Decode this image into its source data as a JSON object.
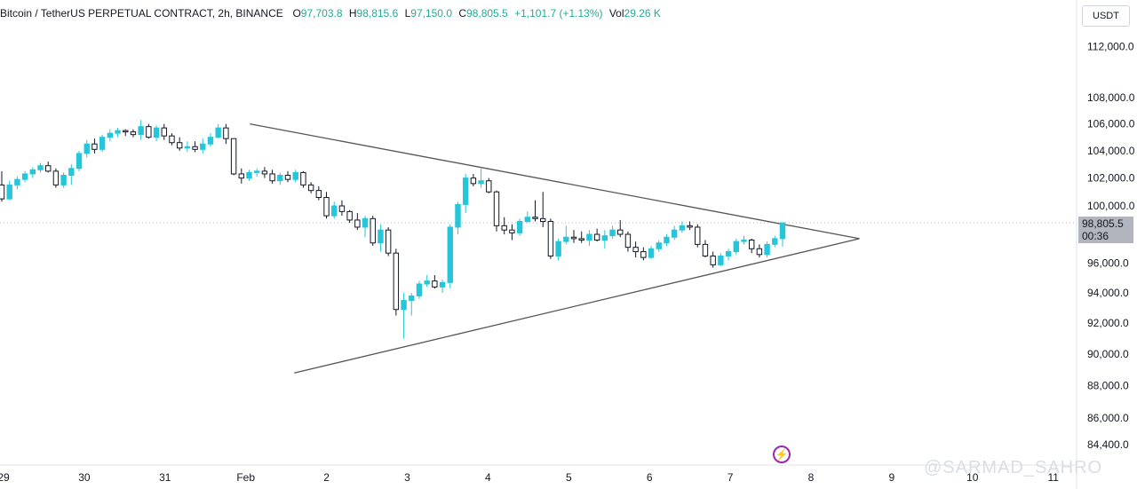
{
  "legend": {
    "symbol": "Bitcoin / TetherUS PERPETUAL CONTRACT, 2h, BINANCE",
    "o_label": "O",
    "o_value": "97,703.8",
    "h_label": "H",
    "h_value": "98,815.6",
    "l_label": "L",
    "l_value": "97,150.0",
    "c_label": "C",
    "c_value": "98,805.5",
    "change": "+1,101.7 (+1.13%)",
    "vol_label": "Vol",
    "vol_value": "29.26 K"
  },
  "currency": "USDT",
  "price_tag": {
    "price": "98,805.5",
    "countdown": "00:36"
  },
  "watermark": "@SARMAD_SAHRO",
  "colors": {
    "up": "#26c6da",
    "down": "#131722",
    "down_fill": "#ffffff",
    "line": "#555555",
    "current": "#b2b5be"
  },
  "chart_data": {
    "type": "candlestick",
    "y_scale": "log",
    "y_ticks": [
      84400,
      86000,
      88000,
      90000,
      92000,
      94000,
      96000,
      98000,
      100000,
      102000,
      104000,
      106000,
      108000,
      112000
    ],
    "y_tick_labels": [
      "84,400.0",
      "86,000.0",
      "88,000.0",
      "90,000.0",
      "92,000.0",
      "94,000.0",
      "96,000.0",
      "98,000.0",
      "100,000.0",
      "102,000.0",
      "104,000.0",
      "106,000.0",
      "108,000.0",
      "112,000.0"
    ],
    "x_ticks": [
      {
        "label": "29",
        "day": 0
      },
      {
        "label": "30",
        "day": 1
      },
      {
        "label": "31",
        "day": 2
      },
      {
        "label": "Feb",
        "day": 3
      },
      {
        "label": "2",
        "day": 4
      },
      {
        "label": "3",
        "day": 5
      },
      {
        "label": "4",
        "day": 6
      },
      {
        "label": "5",
        "day": 7
      },
      {
        "label": "6",
        "day": 8
      },
      {
        "label": "7",
        "day": 9
      },
      {
        "label": "8",
        "day": 10
      },
      {
        "label": "9",
        "day": 11
      },
      {
        "label": "10",
        "day": 12
      },
      {
        "label": "11",
        "day": 13
      }
    ],
    "current_price": 98805.5,
    "candles": [
      [
        101500,
        102500,
        100300,
        100500
      ],
      [
        100500,
        101800,
        100400,
        101500
      ],
      [
        101500,
        102100,
        101200,
        101900
      ],
      [
        101900,
        102500,
        101700,
        102300
      ],
      [
        102300,
        102800,
        102000,
        102600
      ],
      [
        102600,
        103100,
        102400,
        102900
      ],
      [
        102900,
        103200,
        102400,
        102500
      ],
      [
        102500,
        102700,
        101300,
        101500
      ],
      [
        101500,
        102400,
        101300,
        102200
      ],
      [
        102200,
        103000,
        101500,
        102700
      ],
      [
        102700,
        104000,
        102500,
        103800
      ],
      [
        103800,
        104800,
        103500,
        104500
      ],
      [
        104500,
        104900,
        103800,
        104100
      ],
      [
        104100,
        105200,
        103900,
        105000
      ],
      [
        105000,
        105600,
        104700,
        105300
      ],
      [
        105300,
        105700,
        105000,
        105500
      ],
      [
        105500,
        105600,
        105100,
        105400
      ],
      [
        105400,
        105600,
        105000,
        105200
      ],
      [
        105200,
        106300,
        104800,
        105800
      ],
      [
        105800,
        106000,
        104900,
        105000
      ],
      [
        105000,
        105900,
        104700,
        105700
      ],
      [
        105700,
        106000,
        104800,
        105100
      ],
      [
        105100,
        105300,
        104400,
        104600
      ],
      [
        104600,
        105000,
        104000,
        104200
      ],
      [
        104200,
        104700,
        103900,
        104300
      ],
      [
        104300,
        104700,
        103900,
        104100
      ],
      [
        104100,
        104900,
        103800,
        104500
      ],
      [
        104500,
        105300,
        104300,
        105000
      ],
      [
        105000,
        106000,
        104900,
        105700
      ],
      [
        105700,
        106000,
        104500,
        104900
      ],
      [
        104900,
        104900,
        102200,
        102300
      ],
      [
        102300,
        102700,
        101600,
        102000
      ],
      [
        102000,
        102600,
        101800,
        102400
      ],
      [
        102400,
        102700,
        102100,
        102500
      ],
      [
        102500,
        102800,
        102000,
        102300
      ],
      [
        102300,
        102600,
        101600,
        101800
      ],
      [
        101800,
        102400,
        101500,
        102200
      ],
      [
        102200,
        102500,
        101700,
        101900
      ],
      [
        101900,
        102600,
        101700,
        102400
      ],
      [
        102400,
        102500,
        101300,
        101500
      ],
      [
        101500,
        101700,
        100900,
        101100
      ],
      [
        101100,
        101400,
        100400,
        100600
      ],
      [
        100600,
        101000,
        99100,
        99300
      ],
      [
        99300,
        100300,
        99100,
        100000
      ],
      [
        100000,
        100400,
        99300,
        99600
      ],
      [
        99600,
        99700,
        98800,
        99000
      ],
      [
        99000,
        99500,
        98300,
        98500
      ],
      [
        98500,
        99300,
        97800,
        99100
      ],
      [
        99100,
        99300,
        97200,
        97400
      ],
      [
        97400,
        98700,
        96800,
        98300
      ],
      [
        98300,
        98500,
        96500,
        96700
      ],
      [
        96700,
        97000,
        92500,
        92900
      ],
      [
        92900,
        94000,
        91000,
        93500
      ],
      [
        93500,
        94000,
        92500,
        93800
      ],
      [
        93800,
        94800,
        93600,
        94600
      ],
      [
        94600,
        95200,
        94400,
        94800
      ],
      [
        94800,
        95200,
        94300,
        94400
      ],
      [
        94400,
        94900,
        94000,
        94700
      ],
      [
        94700,
        98700,
        94300,
        98500
      ],
      [
        98500,
        100300,
        98000,
        100100
      ],
      [
        100100,
        102300,
        99500,
        102000
      ],
      [
        102000,
        102300,
        101400,
        101600
      ],
      [
        101600,
        102700,
        101300,
        101800
      ],
      [
        101800,
        102000,
        100900,
        101000
      ],
      [
        101000,
        101100,
        98200,
        98600
      ],
      [
        98600,
        99200,
        98000,
        98300
      ],
      [
        98300,
        98700,
        97600,
        98100
      ],
      [
        98100,
        99100,
        97900,
        98900
      ],
      [
        98900,
        99600,
        98800,
        99200
      ],
      [
        99200,
        100400,
        98900,
        99100
      ],
      [
        99100,
        101000,
        98500,
        98900
      ],
      [
        98900,
        99100,
        96300,
        96500
      ],
      [
        96500,
        97700,
        96200,
        97500
      ],
      [
        97500,
        98600,
        97300,
        97800
      ],
      [
        97800,
        98300,
        97400,
        97700
      ],
      [
        97700,
        98200,
        97400,
        97600
      ],
      [
        97600,
        98300,
        97200,
        98000
      ],
      [
        98000,
        98400,
        97500,
        97600
      ],
      [
        97600,
        98300,
        97000,
        97900
      ],
      [
        97900,
        98600,
        97700,
        98300
      ],
      [
        98300,
        99000,
        97800,
        98000
      ],
      [
        98000,
        98200,
        96800,
        97100
      ],
      [
        97100,
        97500,
        96400,
        96800
      ],
      [
        96800,
        97100,
        96200,
        96400
      ],
      [
        96400,
        97200,
        96300,
        97000
      ],
      [
        97000,
        97600,
        96800,
        97400
      ],
      [
        97400,
        98000,
        97200,
        97800
      ],
      [
        97800,
        98600,
        97600,
        98300
      ],
      [
        98300,
        98900,
        98100,
        98600
      ],
      [
        98600,
        98900,
        98300,
        98500
      ],
      [
        98500,
        98700,
        97100,
        97300
      ],
      [
        97300,
        97600,
        96400,
        96500
      ],
      [
        96500,
        96800,
        95700,
        95900
      ],
      [
        95900,
        96700,
        95800,
        96500
      ],
      [
        96500,
        97000,
        96200,
        96800
      ],
      [
        96800,
        97700,
        96600,
        97500
      ],
      [
        97500,
        97900,
        97300,
        97600
      ],
      [
        97600,
        97700,
        96700,
        97000
      ],
      [
        97000,
        97300,
        96400,
        96600
      ],
      [
        96600,
        97500,
        96400,
        97300
      ],
      [
        97300,
        97900,
        97100,
        97700
      ],
      [
        97700,
        98800,
        97150,
        98805
      ]
    ],
    "trendlines": [
      {
        "name": "upper",
        "from": {
          "day": 3.05,
          "price": 106000
        },
        "to": {
          "day": 10.6,
          "price": 97700
        }
      },
      {
        "name": "lower",
        "from": {
          "day": 3.6,
          "price": 88800
        },
        "to": {
          "day": 10.6,
          "price": 97700
        }
      }
    ]
  }
}
